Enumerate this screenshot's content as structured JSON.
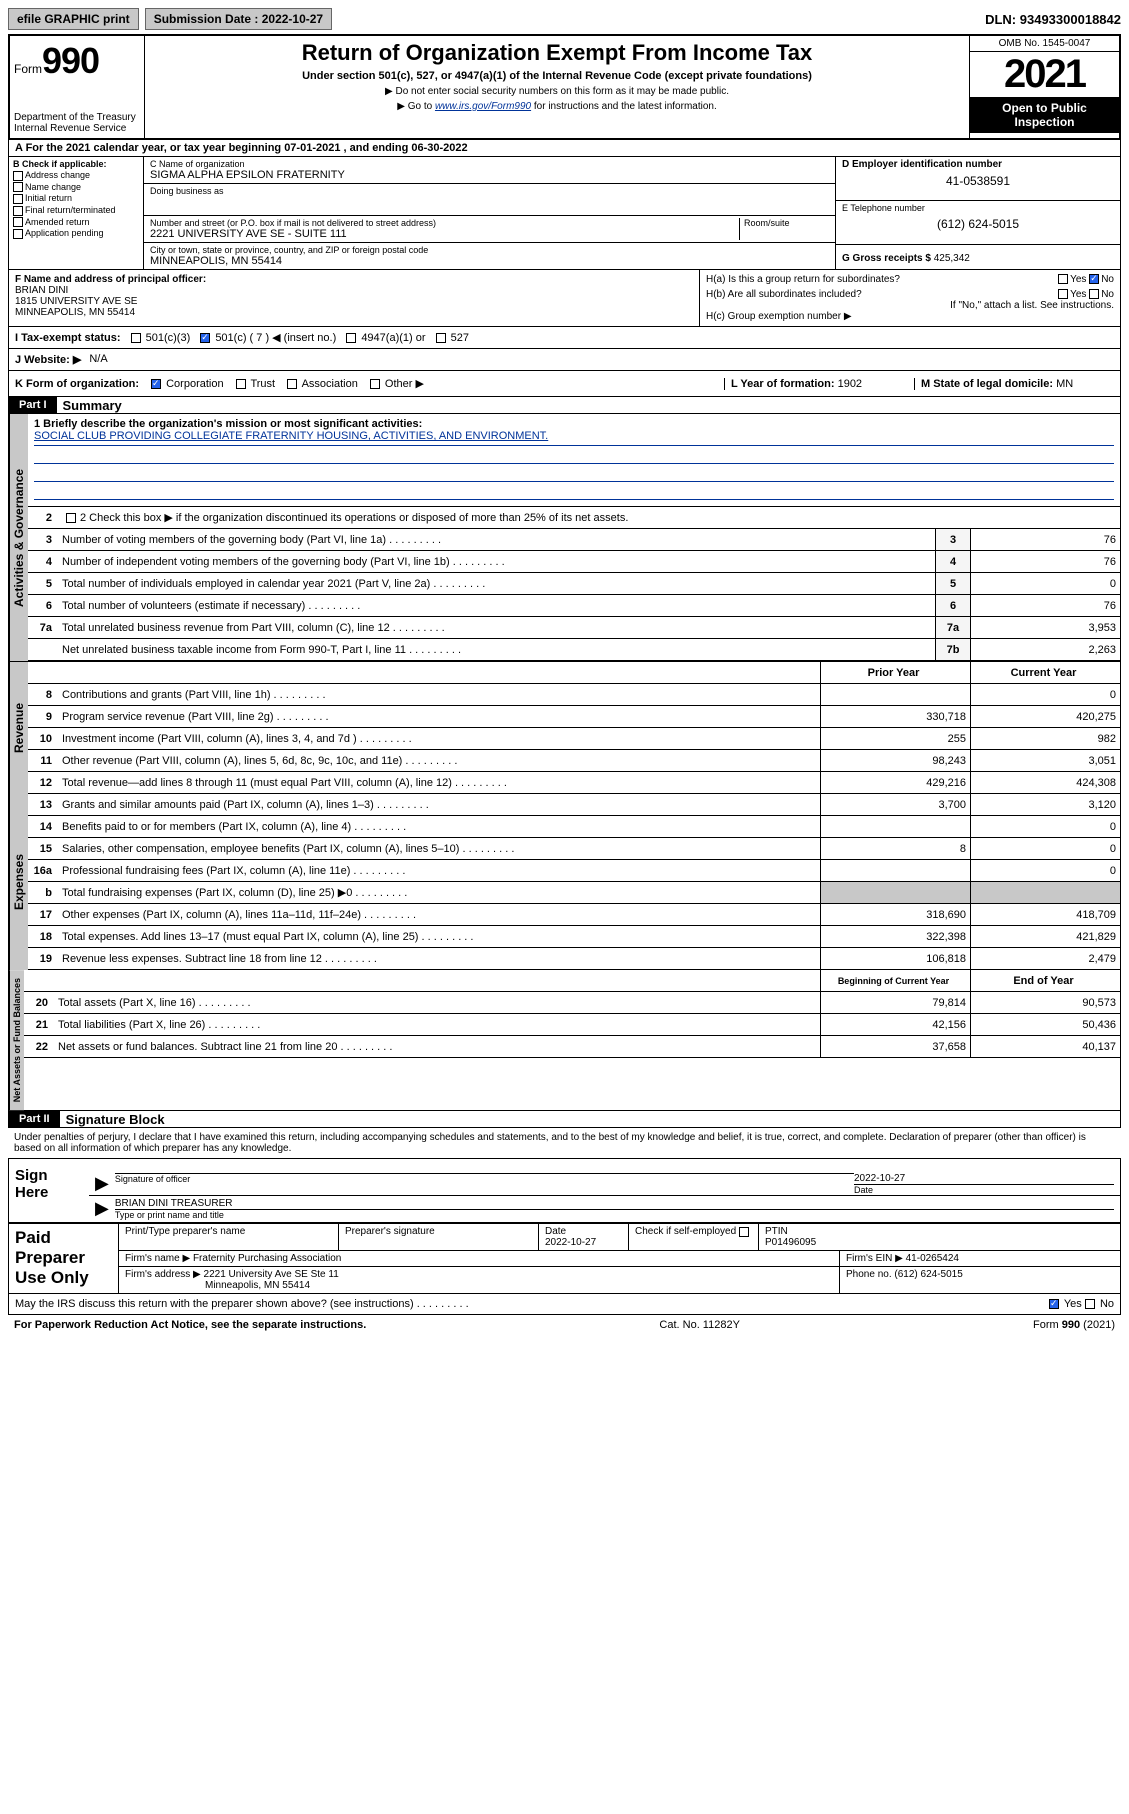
{
  "topbar": {
    "efile": "efile GRAPHIC print",
    "submission_label": "Submission Date :",
    "submission_date": "2022-10-27",
    "dln_label": "DLN:",
    "dln": "93493300018842"
  },
  "header": {
    "form_label": "Form",
    "form_num": "990",
    "dept": "Department of the Treasury",
    "irs": "Internal Revenue Service",
    "title": "Return of Organization Exempt From Income Tax",
    "sub": "Under section 501(c), 527, or 4947(a)(1) of the Internal Revenue Code (except private foundations)",
    "note1": "▶ Do not enter social security numbers on this form as it may be made public.",
    "note2_prefix": "▶ Go to ",
    "note2_link": "www.irs.gov/Form990",
    "note2_suffix": " for instructions and the latest information.",
    "omb": "OMB No. 1545-0047",
    "year": "2021",
    "open": "Open to Public Inspection"
  },
  "period": {
    "text": "A For the 2021 calendar year, or tax year beginning 07-01-2021   , and ending 06-30-2022"
  },
  "sectionB": {
    "label": "B Check if applicable:",
    "items": [
      "Address change",
      "Name change",
      "Initial return",
      "Final return/terminated",
      "Amended return",
      "Application pending"
    ]
  },
  "sectionC": {
    "name_label": "C Name of organization",
    "name": "SIGMA ALPHA EPSILON FRATERNITY",
    "dba_label": "Doing business as",
    "dba": "",
    "street_label": "Number and street (or P.O. box if mail is not delivered to street address)",
    "street": "2221 UNIVERSITY AVE SE - SUITE 111",
    "room_label": "Room/suite",
    "city_label": "City or town, state or province, country, and ZIP or foreign postal code",
    "city": "MINNEAPOLIS, MN  55414"
  },
  "sectionD": {
    "ein_label": "D Employer identification number",
    "ein": "41-0538591",
    "phone_label": "E Telephone number",
    "phone": "(612) 624-5015",
    "gross_label": "G Gross receipts $",
    "gross": "425,342"
  },
  "sectionF": {
    "label": "F  Name and address of principal officer:",
    "name": "BRIAN DINI",
    "addr1": "1815 UNIVERSITY AVE SE",
    "addr2": "MINNEAPOLIS, MN  55414"
  },
  "sectionH": {
    "ha": "H(a)  Is this a group return for subordinates?",
    "hb": "H(b)  Are all subordinates included?",
    "hb_note": "If \"No,\" attach a list. See instructions.",
    "hc": "H(c)  Group exemption number ▶",
    "yes": "Yes",
    "no": "No"
  },
  "sectionI": {
    "label": "I    Tax-exempt status:",
    "c3": "501(c)(3)",
    "c": "501(c) ( 7 ) ◀ (insert no.)",
    "a1": "4947(a)(1) or",
    "s527": "527"
  },
  "sectionJ": {
    "label": "J   Website: ▶",
    "val": "N/A"
  },
  "sectionK": {
    "label": "K Form of organization:",
    "corp": "Corporation",
    "trust": "Trust",
    "assoc": "Association",
    "other": "Other ▶"
  },
  "sectionL": {
    "label": "L Year of formation:",
    "val": "1902"
  },
  "sectionM": {
    "label": "M State of legal domicile:",
    "val": "MN"
  },
  "part1": {
    "header": "Part I",
    "title": "Summary",
    "q1_label": "1  Briefly describe the organization's mission or most significant activities:",
    "q1_val": "SOCIAL CLUB PROVIDING COLLEGIATE FRATERNITY HOUSING, ACTIVITIES, AND ENVIRONMENT.",
    "q2": "2    Check this box ▶        if the organization discontinued its operations or disposed of more than 25% of its net assets.",
    "tabs": {
      "ag": "Activities & Governance",
      "rev": "Revenue",
      "exp": "Expenses",
      "na": "Net Assets or Fund Balances"
    },
    "lines_top": [
      {
        "n": "3",
        "d": "Number of voting members of the governing body (Part VI, line 1a)",
        "box": "3",
        "v": "76"
      },
      {
        "n": "4",
        "d": "Number of independent voting members of the governing body (Part VI, line 1b)",
        "box": "4",
        "v": "76"
      },
      {
        "n": "5",
        "d": "Total number of individuals employed in calendar year 2021 (Part V, line 2a)",
        "box": "5",
        "v": "0"
      },
      {
        "n": "6",
        "d": "Total number of volunteers (estimate if necessary)",
        "box": "6",
        "v": "76"
      },
      {
        "n": "7a",
        "d": "Total unrelated business revenue from Part VIII, column (C), line 12",
        "box": "7a",
        "v": "3,953"
      },
      {
        "n": "",
        "d": "Net unrelated business taxable income from Form 990-T, Part I, line 11",
        "box": "7b",
        "v": "2,263"
      }
    ],
    "col_prior": "Prior Year",
    "col_current": "Current Year",
    "revenue": [
      {
        "n": "8",
        "d": "Contributions and grants (Part VIII, line 1h)",
        "p": "",
        "c": "0"
      },
      {
        "n": "9",
        "d": "Program service revenue (Part VIII, line 2g)",
        "p": "330,718",
        "c": "420,275"
      },
      {
        "n": "10",
        "d": "Investment income (Part VIII, column (A), lines 3, 4, and 7d )",
        "p": "255",
        "c": "982"
      },
      {
        "n": "11",
        "d": "Other revenue (Part VIII, column (A), lines 5, 6d, 8c, 9c, 10c, and 11e)",
        "p": "98,243",
        "c": "3,051"
      },
      {
        "n": "12",
        "d": "Total revenue—add lines 8 through 11 (must equal Part VIII, column (A), line 12)",
        "p": "429,216",
        "c": "424,308"
      }
    ],
    "expenses": [
      {
        "n": "13",
        "d": "Grants and similar amounts paid (Part IX, column (A), lines 1–3)",
        "p": "3,700",
        "c": "3,120"
      },
      {
        "n": "14",
        "d": "Benefits paid to or for members (Part IX, column (A), line 4)",
        "p": "",
        "c": "0"
      },
      {
        "n": "15",
        "d": "Salaries, other compensation, employee benefits (Part IX, column (A), lines 5–10)",
        "p": "8",
        "c": "0"
      },
      {
        "n": "16a",
        "d": "Professional fundraising fees (Part IX, column (A), line 11e)",
        "p": "",
        "c": "0"
      },
      {
        "n": "b",
        "d": "Total fundraising expenses (Part IX, column (D), line 25) ▶0",
        "p": "",
        "c": "",
        "gray": true
      },
      {
        "n": "17",
        "d": "Other expenses (Part IX, column (A), lines 11a–11d, 11f–24e)",
        "p": "318,690",
        "c": "418,709"
      },
      {
        "n": "18",
        "d": "Total expenses. Add lines 13–17 (must equal Part IX, column (A), line 25)",
        "p": "322,398",
        "c": "421,829"
      },
      {
        "n": "19",
        "d": "Revenue less expenses. Subtract line 18 from line 12",
        "p": "106,818",
        "c": "2,479"
      }
    ],
    "col_begin": "Beginning of Current Year",
    "col_end": "End of Year",
    "netassets": [
      {
        "n": "20",
        "d": "Total assets (Part X, line 16)",
        "p": "79,814",
        "c": "90,573"
      },
      {
        "n": "21",
        "d": "Total liabilities (Part X, line 26)",
        "p": "42,156",
        "c": "50,436"
      },
      {
        "n": "22",
        "d": "Net assets or fund balances. Subtract line 21 from line 20",
        "p": "37,658",
        "c": "40,137"
      }
    ]
  },
  "part2": {
    "header": "Part II",
    "title": "Signature Block",
    "decl": "Under penalties of perjury, I declare that I have examined this return, including accompanying schedules and statements, and to the best of my knowledge and belief, it is true, correct, and complete. Declaration of preparer (other than officer) is based on all information of which preparer has any knowledge.",
    "sign_here": "Sign Here",
    "sig_officer": "Signature of officer",
    "sig_date_label": "Date",
    "sig_date": "2022-10-27",
    "officer_name": "BRIAN DINI TREASURER",
    "type_name": "Type or print name and title",
    "paid": "Paid Preparer Use Only",
    "prep_name_label": "Print/Type preparer's name",
    "prep_sig_label": "Preparer's signature",
    "date_label": "Date",
    "date_val": "2022-10-27",
    "check_label": "Check         if self-employed",
    "ptin_label": "PTIN",
    "ptin": "P01496095",
    "firm_name_label": "Firm's name     ▶",
    "firm_name": "Fraternity Purchasing Association",
    "firm_ein_label": "Firm's EIN ▶",
    "firm_ein": "41-0265424",
    "firm_addr_label": "Firm's address ▶",
    "firm_addr1": "2221 University Ave SE Ste 11",
    "firm_addr2": "Minneapolis, MN  55414",
    "firm_phone_label": "Phone no.",
    "firm_phone": "(612) 624-5015",
    "discuss": "May the IRS discuss this return with the preparer shown above? (see instructions)",
    "discuss_yes": "Yes",
    "discuss_no": "No"
  },
  "footer": {
    "pra": "For Paperwork Reduction Act Notice, see the separate instructions.",
    "cat": "Cat. No. 11282Y",
    "form": "Form 990 (2021)"
  }
}
